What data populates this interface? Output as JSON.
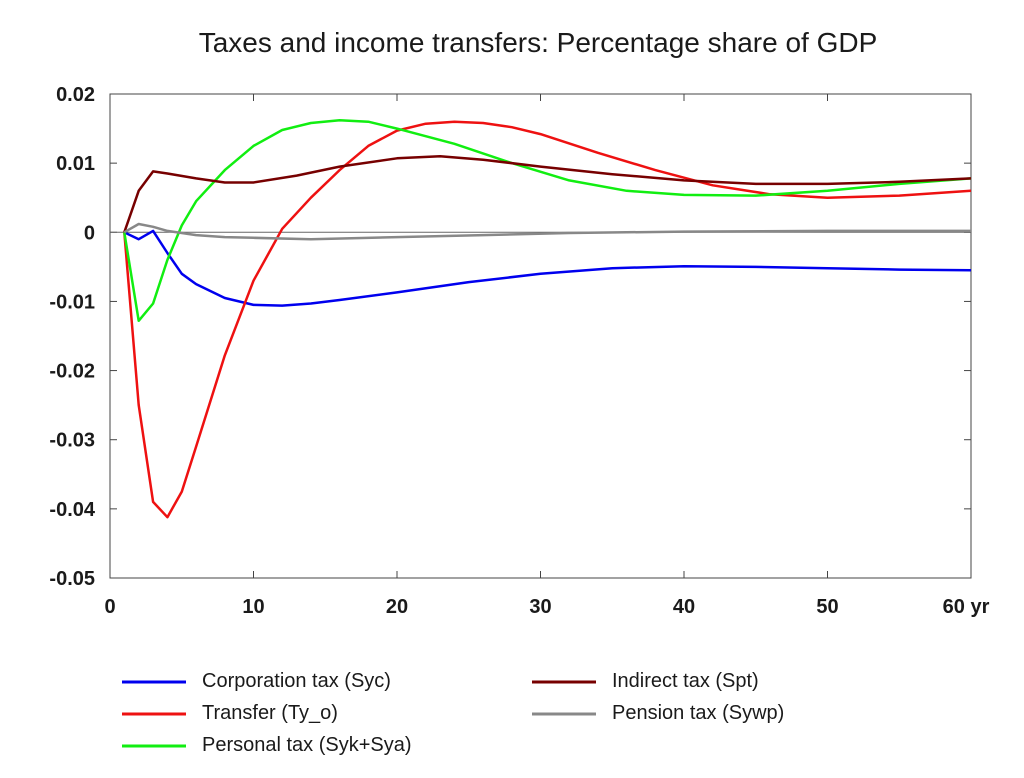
{
  "chart_data": {
    "type": "line",
    "title": "Taxes and income transfers: Percentage share of GDP",
    "xlabel": "",
    "ylabel": "",
    "xlim": [
      0,
      60
    ],
    "ylim": [
      -0.05,
      0.02
    ],
    "x_ticks": [
      0,
      10,
      20,
      30,
      40,
      50,
      60
    ],
    "x_tick_labels": [
      "0",
      "10",
      "20",
      "30",
      "40",
      "50",
      "60 yr"
    ],
    "y_ticks": [
      0.02,
      0.01,
      0,
      -0.01,
      -0.02,
      -0.03,
      -0.04,
      -0.05
    ],
    "y_tick_labels": [
      "0.02",
      "0.01",
      "0",
      "-0.01",
      "-0.02",
      "-0.03",
      "-0.04",
      "-0.05"
    ],
    "grid": false,
    "legend_position": "bottom",
    "series": [
      {
        "name": "Corporation tax (Syc)",
        "color": "#0000ee",
        "points": [
          [
            1,
            0
          ],
          [
            2,
            -0.001
          ],
          [
            3,
            0.0002
          ],
          [
            4,
            -0.003
          ],
          [
            5,
            -0.006
          ],
          [
            6,
            -0.0075
          ],
          [
            8,
            -0.0095
          ],
          [
            10,
            -0.0105
          ],
          [
            12,
            -0.0106
          ],
          [
            14,
            -0.0103
          ],
          [
            16,
            -0.0098
          ],
          [
            20,
            -0.0087
          ],
          [
            25,
            -0.0072
          ],
          [
            30,
            -0.006
          ],
          [
            35,
            -0.0052
          ],
          [
            40,
            -0.0049
          ],
          [
            45,
            -0.005
          ],
          [
            50,
            -0.0052
          ],
          [
            55,
            -0.0054
          ],
          [
            60,
            -0.0055
          ]
        ]
      },
      {
        "name": "Transfer (Ty_o)",
        "color": "#ee1111",
        "points": [
          [
            1,
            0
          ],
          [
            2,
            -0.025
          ],
          [
            3,
            -0.039
          ],
          [
            4,
            -0.0412
          ],
          [
            5,
            -0.0375
          ],
          [
            6,
            -0.031
          ],
          [
            8,
            -0.0178
          ],
          [
            10,
            -0.007
          ],
          [
            12,
            0.0005
          ],
          [
            14,
            0.005
          ],
          [
            16,
            0.009
          ],
          [
            18,
            0.0125
          ],
          [
            20,
            0.0147
          ],
          [
            22,
            0.0157
          ],
          [
            24,
            0.016
          ],
          [
            26,
            0.0158
          ],
          [
            28,
            0.0152
          ],
          [
            30,
            0.0142
          ],
          [
            34,
            0.0115
          ],
          [
            38,
            0.009
          ],
          [
            42,
            0.0068
          ],
          [
            46,
            0.0055
          ],
          [
            50,
            0.005
          ],
          [
            55,
            0.0053
          ],
          [
            60,
            0.006
          ]
        ]
      },
      {
        "name": "Personal tax (Syk+Sya)",
        "color": "#11ee11",
        "points": [
          [
            1,
            0
          ],
          [
            2,
            -0.0128
          ],
          [
            3,
            -0.0103
          ],
          [
            4,
            -0.004
          ],
          [
            5,
            0.001
          ],
          [
            6,
            0.0045
          ],
          [
            8,
            0.009
          ],
          [
            10,
            0.0125
          ],
          [
            12,
            0.0148
          ],
          [
            14,
            0.0158
          ],
          [
            16,
            0.0162
          ],
          [
            18,
            0.016
          ],
          [
            20,
            0.015
          ],
          [
            24,
            0.0128
          ],
          [
            28,
            0.01
          ],
          [
            32,
            0.0075
          ],
          [
            36,
            0.006
          ],
          [
            40,
            0.0054
          ],
          [
            45,
            0.0053
          ],
          [
            50,
            0.006
          ],
          [
            55,
            0.007
          ],
          [
            60,
            0.0078
          ]
        ]
      },
      {
        "name": "Indirect tax (Spt)",
        "color": "#770000",
        "points": [
          [
            1,
            0
          ],
          [
            2,
            0.006
          ],
          [
            3,
            0.0088
          ],
          [
            4,
            0.0085
          ],
          [
            6,
            0.0078
          ],
          [
            8,
            0.0072
          ],
          [
            10,
            0.0072
          ],
          [
            13,
            0.0082
          ],
          [
            16,
            0.0095
          ],
          [
            20,
            0.0107
          ],
          [
            23,
            0.011
          ],
          [
            26,
            0.0105
          ],
          [
            30,
            0.0095
          ],
          [
            35,
            0.0084
          ],
          [
            40,
            0.0075
          ],
          [
            45,
            0.007
          ],
          [
            50,
            0.007
          ],
          [
            55,
            0.0073
          ],
          [
            60,
            0.0078
          ]
        ]
      },
      {
        "name": "Pension tax (Sywp)",
        "color": "#888888",
        "points": [
          [
            1,
            0
          ],
          [
            2,
            0.0012
          ],
          [
            3,
            0.0008
          ],
          [
            4,
            0.0002
          ],
          [
            6,
            -0.0004
          ],
          [
            8,
            -0.0007
          ],
          [
            10,
            -0.0008
          ],
          [
            14,
            -0.001
          ],
          [
            20,
            -0.0007
          ],
          [
            26,
            -0.0004
          ],
          [
            32,
            -0.0001
          ],
          [
            40,
            0.0001
          ],
          [
            50,
            0.0002
          ],
          [
            60,
            0.0002
          ]
        ]
      }
    ],
    "legend_order": [
      0,
      3,
      1,
      4,
      2
    ]
  }
}
